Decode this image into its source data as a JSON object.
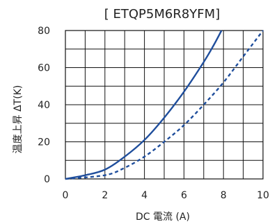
{
  "chart_data": {
    "type": "line",
    "title": "[ ETQP5M6R8YFM]",
    "xlabel": "DC 電流 (A)",
    "ylabel": "温度上昇 ΔT(K)",
    "xlim": [
      0,
      10
    ],
    "ylim": [
      0,
      80
    ],
    "x_ticks": [
      0,
      2,
      4,
      6,
      8,
      10
    ],
    "y_ticks": [
      0,
      20,
      40,
      60,
      80
    ],
    "grid": true,
    "series": [
      {
        "style": "solid",
        "color": "#1f4e9c",
        "x": [
          0,
          1,
          2,
          3,
          4,
          5,
          6,
          7,
          7.5,
          7.9
        ],
        "y": [
          0,
          2,
          5,
          12,
          21,
          33,
          47,
          63,
          72,
          80
        ]
      },
      {
        "style": "dashed",
        "color": "#1f4e9c",
        "x": [
          0,
          2,
          3,
          4,
          5,
          6,
          7,
          8,
          9,
          10
        ],
        "y": [
          0,
          2,
          6,
          12,
          20,
          29,
          40,
          52,
          66,
          80
        ]
      }
    ]
  }
}
